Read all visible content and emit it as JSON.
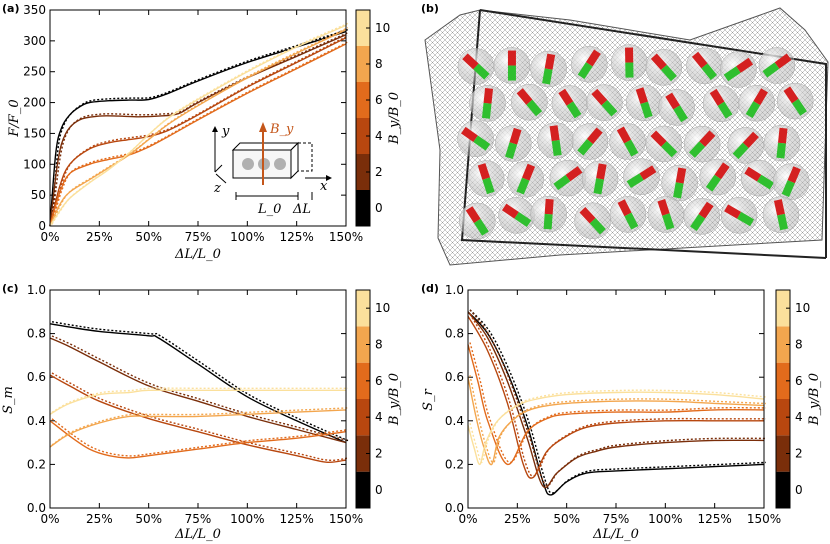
{
  "colorbar": {
    "label": "B_y/B_0",
    "ticks": [
      "0",
      "2",
      "4",
      "6",
      "8",
      "10"
    ],
    "range": [
      -1,
      11
    ],
    "bands": [
      {
        "from": -1,
        "to": 1,
        "color": "#000000"
      },
      {
        "from": 1,
        "to": 3,
        "color": "#7a2e0a"
      },
      {
        "from": 3,
        "to": 5,
        "color": "#b8470f"
      },
      {
        "from": 5,
        "to": 7,
        "color": "#e26b1c"
      },
      {
        "from": 7,
        "to": 9,
        "color": "#f3a64e"
      },
      {
        "from": 9,
        "to": 11,
        "color": "#fbe09c"
      }
    ]
  },
  "chart_data": [
    {
      "panel": "(a)",
      "type": "line",
      "ylabel": "F/F_0",
      "xlabel": "ΔL/L_0",
      "xlim": [
        0,
        1.5
      ],
      "ylim": [
        0,
        350
      ],
      "xticks": [
        "0%",
        "25%",
        "50%",
        "75%",
        "100%",
        "125%",
        "150%"
      ],
      "yticks": [
        "0",
        "50",
        "100",
        "150",
        "200",
        "250",
        "300",
        "350"
      ],
      "inset": {
        "y": "y",
        "z": "z",
        "x": "x",
        "field": "B_y",
        "length": "L_0",
        "delta": "ΔL"
      },
      "series": [
        {
          "color": "#000000",
          "x": [
            0,
            0.03,
            0.06,
            0.1,
            0.15,
            0.2,
            0.3,
            0.4,
            0.5,
            0.6,
            0.75,
            1.0,
            1.25,
            1.5
          ],
          "y": [
            0,
            120,
            160,
            180,
            193,
            200,
            203,
            204,
            205,
            215,
            235,
            265,
            290,
            315
          ]
        },
        {
          "color": "#7a2e0a",
          "x": [
            0,
            0.04,
            0.08,
            0.15,
            0.25,
            0.35,
            0.45,
            0.55,
            0.65,
            0.75,
            1.0,
            1.25,
            1.5
          ],
          "y": [
            0,
            105,
            150,
            172,
            178,
            178,
            177,
            178,
            182,
            200,
            240,
            275,
            310
          ]
        },
        {
          "color": "#b8470f",
          "x": [
            0,
            0.05,
            0.1,
            0.2,
            0.3,
            0.4,
            0.5,
            0.6,
            0.75,
            1.0,
            1.25,
            1.5
          ],
          "y": [
            0,
            65,
            100,
            125,
            135,
            140,
            145,
            155,
            180,
            225,
            265,
            305
          ]
        },
        {
          "color": "#e26b1c",
          "x": [
            0,
            0.05,
            0.1,
            0.2,
            0.3,
            0.4,
            0.5,
            0.6,
            0.75,
            1.0,
            1.25,
            1.5
          ],
          "y": [
            0,
            55,
            85,
            100,
            108,
            115,
            128,
            145,
            172,
            215,
            255,
            295
          ]
        },
        {
          "color": "#f3a64e",
          "x": [
            0,
            0.05,
            0.1,
            0.2,
            0.3,
            0.4,
            0.5,
            0.6,
            0.75,
            1.0,
            1.25,
            1.5
          ],
          "y": [
            0,
            35,
            55,
            75,
            95,
            115,
            140,
            165,
            195,
            240,
            280,
            318
          ]
        },
        {
          "color": "#fbe09c",
          "x": [
            0,
            0.05,
            0.1,
            0.2,
            0.3,
            0.4,
            0.5,
            0.6,
            0.75,
            1.0,
            1.25,
            1.5
          ],
          "y": [
            0,
            25,
            45,
            70,
            92,
            118,
            148,
            175,
            205,
            250,
            290,
            325
          ]
        }
      ]
    },
    {
      "panel": "(b)",
      "type": "other"
    },
    {
      "panel": "(c)",
      "type": "line",
      "ylabel": "S_m",
      "xlabel": "ΔL/L_0",
      "xlim": [
        0,
        1.5
      ],
      "ylim": [
        0,
        1.0
      ],
      "xticks": [
        "0%",
        "25%",
        "50%",
        "75%",
        "100%",
        "125%",
        "150%"
      ],
      "yticks": [
        "0.0",
        "0.2",
        "0.4",
        "0.6",
        "0.8",
        "1.0"
      ],
      "series": [
        {
          "color": "#000000",
          "x": [
            0,
            0.1,
            0.25,
            0.5,
            0.55,
            0.75,
            1.0,
            1.25,
            1.5
          ],
          "y": [
            0.845,
            0.83,
            0.81,
            0.79,
            0.78,
            0.66,
            0.51,
            0.4,
            0.3
          ]
        },
        {
          "color": "#7a2e0a",
          "x": [
            0,
            0.1,
            0.25,
            0.5,
            0.75,
            1.0,
            1.25,
            1.5
          ],
          "y": [
            0.78,
            0.74,
            0.67,
            0.56,
            0.49,
            0.42,
            0.36,
            0.3
          ]
        },
        {
          "color": "#b8470f",
          "x": [
            0,
            0.1,
            0.25,
            0.5,
            0.75,
            1.0,
            1.25,
            1.4,
            1.5
          ],
          "y": [
            0.61,
            0.56,
            0.49,
            0.41,
            0.35,
            0.29,
            0.24,
            0.21,
            0.22
          ]
        },
        {
          "color": "#e26b1c",
          "x": [
            0,
            0.1,
            0.2,
            0.3,
            0.4,
            0.5,
            0.75,
            1.0,
            1.25,
            1.5
          ],
          "y": [
            0.4,
            0.33,
            0.27,
            0.24,
            0.23,
            0.24,
            0.27,
            0.3,
            0.32,
            0.35
          ]
        },
        {
          "color": "#f3a64e",
          "x": [
            0,
            0.1,
            0.25,
            0.4,
            0.5,
            0.75,
            1.0,
            1.25,
            1.5
          ],
          "y": [
            0.28,
            0.34,
            0.39,
            0.42,
            0.42,
            0.42,
            0.43,
            0.44,
            0.45
          ]
        },
        {
          "color": "#fbe09c",
          "x": [
            0,
            0.1,
            0.25,
            0.4,
            0.5,
            0.75,
            1.0,
            1.25,
            1.5
          ],
          "y": [
            0.43,
            0.48,
            0.52,
            0.53,
            0.54,
            0.54,
            0.54,
            0.54,
            0.54
          ]
        }
      ]
    },
    {
      "panel": "(d)",
      "type": "line",
      "ylabel": "S_r",
      "xlabel": "ΔL/L_0",
      "xlim": [
        0,
        1.5
      ],
      "ylim": [
        0,
        1.0
      ],
      "xticks": [
        "0%",
        "25%",
        "50%",
        "75%",
        "100%",
        "125%",
        "150%"
      ],
      "yticks": [
        "0.0",
        "0.2",
        "0.4",
        "0.6",
        "0.8",
        "1.0"
      ],
      "series": [
        {
          "color": "#000000",
          "x": [
            0,
            0.1,
            0.2,
            0.3,
            0.38,
            0.42,
            0.5,
            0.6,
            0.75,
            1.0,
            1.25,
            1.5
          ],
          "y": [
            0.9,
            0.8,
            0.62,
            0.38,
            0.12,
            0.06,
            0.12,
            0.16,
            0.17,
            0.18,
            0.19,
            0.2
          ]
        },
        {
          "color": "#7a2e0a",
          "x": [
            0,
            0.1,
            0.2,
            0.3,
            0.38,
            0.45,
            0.55,
            0.65,
            0.75,
            1.0,
            1.25,
            1.5
          ],
          "y": [
            0.9,
            0.78,
            0.58,
            0.32,
            0.1,
            0.16,
            0.23,
            0.26,
            0.28,
            0.3,
            0.31,
            0.31
          ]
        },
        {
          "color": "#b8470f",
          "x": [
            0,
            0.1,
            0.2,
            0.28,
            0.33,
            0.4,
            0.5,
            0.6,
            0.75,
            1.0,
            1.25,
            1.5
          ],
          "y": [
            0.88,
            0.72,
            0.48,
            0.2,
            0.14,
            0.26,
            0.33,
            0.37,
            0.39,
            0.4,
            0.4,
            0.4
          ]
        },
        {
          "color": "#e26b1c",
          "x": [
            0,
            0.05,
            0.1,
            0.2,
            0.3,
            0.4,
            0.5,
            0.75,
            1.0,
            1.25,
            1.5
          ],
          "y": [
            0.75,
            0.58,
            0.4,
            0.2,
            0.35,
            0.41,
            0.43,
            0.44,
            0.44,
            0.45,
            0.45
          ]
        },
        {
          "color": "#f3a64e",
          "x": [
            0,
            0.04,
            0.08,
            0.12,
            0.16,
            0.25,
            0.35,
            0.5,
            0.75,
            1.0,
            1.25,
            1.5
          ],
          "y": [
            0.6,
            0.42,
            0.28,
            0.2,
            0.33,
            0.42,
            0.46,
            0.48,
            0.49,
            0.49,
            0.48,
            0.47
          ]
        },
        {
          "color": "#fbe09c",
          "x": [
            0,
            0.03,
            0.06,
            0.09,
            0.15,
            0.25,
            0.35,
            0.5,
            0.75,
            1.0,
            1.25,
            1.5
          ],
          "y": [
            0.38,
            0.28,
            0.2,
            0.3,
            0.4,
            0.47,
            0.5,
            0.52,
            0.53,
            0.53,
            0.52,
            0.5
          ]
        }
      ]
    }
  ]
}
